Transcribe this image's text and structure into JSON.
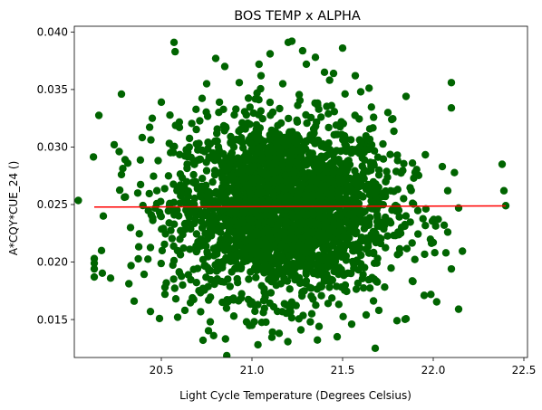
{
  "chart_data": {
    "type": "scatter",
    "title": "BOS TEMP x ALPHA",
    "xlabel": "Light Cycle Temperature (Degrees Celsius)",
    "ylabel": "A*CQY*CUE_24 ()",
    "xlim": [
      20.02,
      22.52
    ],
    "ylim": [
      0.0117,
      0.0405
    ],
    "x_ticks": [
      20.5,
      21.0,
      21.5,
      22.0,
      22.5
    ],
    "x_tick_labels": [
      "20.5",
      "21.0",
      "21.5",
      "22.0",
      "22.5"
    ],
    "y_ticks": [
      0.015,
      0.02,
      0.025,
      0.03,
      0.035,
      0.04
    ],
    "y_tick_labels": [
      "0.015",
      "0.020",
      "0.025",
      "0.030",
      "0.035",
      "0.040"
    ],
    "grid": false,
    "colors": {
      "points": "#006400",
      "trend": "#ff0000"
    },
    "series": [
      {
        "type": "scatter",
        "x": [
          20.13,
          20.13,
          20.13,
          20.13,
          20.17,
          20.18,
          20.22,
          20.24,
          20.28,
          20.28,
          20.3,
          20.33,
          20.35,
          20.37,
          20.44,
          20.45,
          20.5,
          20.52,
          20.52,
          20.57,
          20.58,
          20.59,
          20.6,
          20.63,
          20.73,
          20.75,
          20.77,
          20.8,
          20.85,
          20.9,
          20.93,
          20.97,
          21.0,
          21.05,
          21.07,
          21.1,
          21.12,
          21.15,
          21.17,
          21.2,
          21.22,
          21.27,
          21.3,
          21.33,
          21.35,
          21.37,
          21.4,
          21.42,
          21.45,
          21.47,
          21.5,
          21.55,
          21.57,
          21.6,
          21.63,
          21.68,
          21.7,
          21.75,
          21.8,
          21.85,
          21.9,
          21.95,
          22.0,
          22.05,
          22.07,
          22.08,
          22.08,
          22.1,
          22.1,
          22.1,
          22.14,
          22.14,
          22.38,
          22.39,
          22.4
        ],
        "y": [
          0.0199,
          0.0194,
          0.0187,
          0.0203,
          0.021,
          0.024,
          0.0186,
          0.0302,
          0.0346,
          0.0276,
          0.0289,
          0.023,
          0.0166,
          0.026,
          0.0157,
          0.0325,
          0.0339,
          0.0172,
          0.0178,
          0.0391,
          0.0168,
          0.0152,
          0.0317,
          0.0158,
          0.0132,
          0.0355,
          0.0148,
          0.0377,
          0.037,
          0.0153,
          0.0356,
          0.0148,
          0.0145,
          0.0362,
          0.0167,
          0.0381,
          0.0161,
          0.0138,
          0.0355,
          0.0391,
          0.0392,
          0.0141,
          0.0372,
          0.0155,
          0.0378,
          0.0144,
          0.0365,
          0.0164,
          0.0364,
          0.0135,
          0.0386,
          0.0146,
          0.0362,
          0.0348,
          0.0154,
          0.0125,
          0.0158,
          0.033,
          0.0149,
          0.0344,
          0.0278,
          0.0171,
          0.0217,
          0.0283,
          0.0208,
          0.0262,
          0.0226,
          0.0356,
          0.0334,
          0.0194,
          0.0159,
          0.0247,
          0.0285,
          0.0262,
          0.0249
        ]
      }
    ],
    "trend_line": {
      "type": "line",
      "x": [
        20.13,
        22.4
      ],
      "y": [
        0.02478,
        0.02488
      ]
    }
  }
}
